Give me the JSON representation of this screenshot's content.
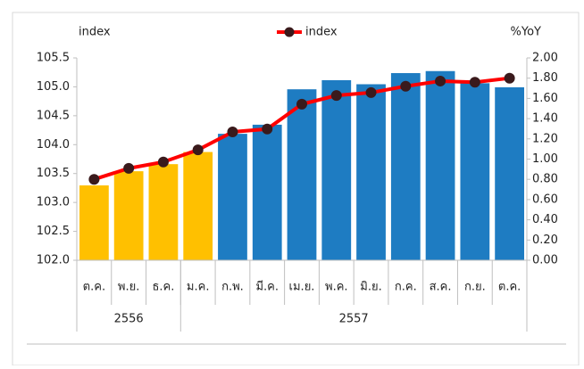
{
  "chart_data": {
    "type": "bar-line",
    "y_label": "index",
    "y2_label": "%YoY",
    "categories": [
      "ต.ค.",
      "พ.ย.",
      "ธ.ค.",
      "ม.ค.",
      "ก.พ.",
      "มี.ค.",
      "เม.ย.",
      "พ.ค.",
      "มิ.ย.",
      "ก.ค.",
      "ส.ค.",
      "ก.ย.",
      "ต.ค."
    ],
    "groups": [
      {
        "label": "2556",
        "span": 3
      },
      {
        "label": "2557",
        "span": 10
      }
    ],
    "series": [
      {
        "type": "bar",
        "axis": "y2",
        "colors": [
          "#FFC000",
          "#FFC000",
          "#FFC000",
          "#FFC000",
          "#1E7CC2",
          "#1E7CC2",
          "#1E7CC2",
          "#1E7CC2",
          "#1E7CC2",
          "#1E7CC2",
          "#1E7CC2",
          "#1E7CC2",
          "#1E7CC2"
        ],
        "values": [
          0.74,
          0.88,
          0.95,
          1.07,
          1.25,
          1.34,
          1.69,
          1.78,
          1.74,
          1.85,
          1.87,
          1.75,
          1.71
        ]
      },
      {
        "type": "line",
        "name": "index",
        "color": "#FF0000",
        "marker_color": "#3A1A1C",
        "values": [
          103.4,
          103.59,
          103.7,
          103.91,
          104.22,
          104.27,
          104.7,
          104.85,
          104.9,
          105.01,
          105.1,
          105.08,
          105.15
        ]
      }
    ],
    "ylim": [
      102.0,
      105.5
    ],
    "yticks": [
      {
        "value": 102.0,
        "label": "102.0"
      },
      102.5,
      {
        "value": 103.0,
        "label": "103.0"
      },
      103.5,
      {
        "value": 104.0,
        "label": "104.0"
      },
      104.5,
      {
        "value": 105.0,
        "label": "105.0"
      },
      105.5
    ],
    "y2lim": [
      0,
      2
    ],
    "y2ticks": [
      {
        "value": 0,
        "label": "0.00"
      },
      {
        "value": 0.2,
        "label": "0.20"
      },
      {
        "value": 0.4,
        "label": "0.40"
      },
      {
        "value": 0.6,
        "label": "0.60"
      },
      {
        "value": 0.8,
        "label": "0.80"
      },
      {
        "value": 1.0,
        "label": "1.00"
      },
      {
        "value": 1.2,
        "label": "1.20"
      },
      {
        "value": 1.4,
        "label": "1.40"
      },
      {
        "value": 1.6,
        "label": "1.60"
      },
      {
        "value": 1.8,
        "label": "1.80"
      },
      {
        "value": 2.0,
        "label": "2.00"
      }
    ],
    "grid": false
  }
}
